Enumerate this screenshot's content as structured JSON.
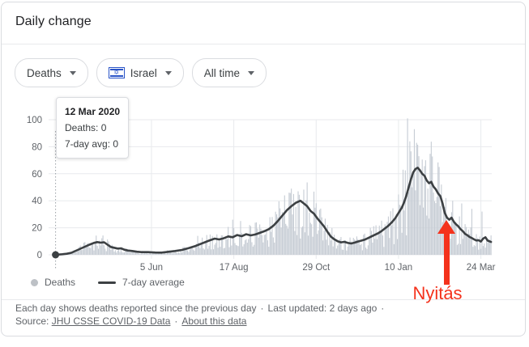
{
  "header": {
    "title": "Daily change"
  },
  "filters": {
    "metric": {
      "label": "Deaths"
    },
    "region": {
      "label": "Israel",
      "flag": "israel-flag",
      "star": "✡"
    },
    "range": {
      "label": "All time"
    }
  },
  "tooltip": {
    "date": "12 Mar 2020",
    "deaths": "Deaths: 0",
    "avg": "7-day avg: 0"
  },
  "legend": {
    "deaths": "Deaths",
    "avg": "7-day average"
  },
  "annotation": {
    "text": "Nyitás",
    "color": "#f4321c",
    "day": 346
  },
  "footer": {
    "desc": "Each day shows deaths reported since the previous day",
    "sep1": "·",
    "updated": "Last updated: 2 days ago",
    "sep2": "·",
    "source_label": "Source:",
    "source_link": "JHU CSSE COVID-19 Data",
    "sep3": "·",
    "about_link": "About this data"
  },
  "chart_data": {
    "type": "bar",
    "title": "Daily change — Deaths — Israel — All time",
    "xlabel": "",
    "ylabel": "",
    "start_date": "12 Mar 2020",
    "days_total": 387,
    "ylim": [
      0,
      100
    ],
    "grid": true,
    "legend_position": "bottom-left",
    "y_axis": {
      "ticks": [
        0,
        20,
        40,
        60,
        80,
        100
      ]
    },
    "x_axis": {
      "ticks": [
        {
          "label": "5 Jun",
          "day": 85
        },
        {
          "label": "17 Aug",
          "day": 158
        },
        {
          "label": "29 Oct",
          "day": 231
        },
        {
          "label": "10 Jan",
          "day": 304
        },
        {
          "label": "24 Mar",
          "day": 377
        }
      ]
    },
    "colors": {
      "bar": "#c6ccd4",
      "line": "#3c4043",
      "grid": "#e8eaed",
      "axis_text": "#5f6368",
      "cursor": "#9aa0a6"
    },
    "series": [
      {
        "name": "Deaths",
        "type": "bar",
        "color": "#c6ccd4",
        "note": "daily bars scatter around 7-day average; notable outlier days listed",
        "spikes": [
          [
            126,
            14
          ],
          [
            157,
            26
          ],
          [
            164,
            25
          ],
          [
            178,
            24
          ],
          [
            196,
            30
          ],
          [
            203,
            44
          ],
          [
            207,
            46
          ],
          [
            211,
            45
          ],
          [
            215,
            47
          ],
          [
            308,
            63
          ],
          [
            312,
            101
          ],
          [
            314,
            84
          ],
          [
            318,
            93
          ],
          [
            322,
            73
          ],
          [
            328,
            70
          ],
          [
            342,
            52
          ],
          [
            346,
            42
          ],
          [
            352,
            40
          ],
          [
            360,
            38
          ],
          [
            369,
            34
          ],
          [
            378,
            32
          ]
        ]
      },
      {
        "name": "7-day average",
        "type": "line",
        "color": "#3c4043",
        "points": [
          [
            0,
            0
          ],
          [
            6,
            0.4
          ],
          [
            10,
            0.8
          ],
          [
            14,
            1.5
          ],
          [
            18,
            3
          ],
          [
            22,
            4.5
          ],
          [
            26,
            6
          ],
          [
            30,
            7.5
          ],
          [
            34,
            8.8
          ],
          [
            37,
            9.4
          ],
          [
            40,
            9
          ],
          [
            43,
            9.3
          ],
          [
            46,
            7.5
          ],
          [
            49,
            5.8
          ],
          [
            52,
            5.2
          ],
          [
            55,
            4.6
          ],
          [
            58,
            4.8
          ],
          [
            61,
            3.8
          ],
          [
            64,
            3.2
          ],
          [
            68,
            2.8
          ],
          [
            72,
            2.3
          ],
          [
            76,
            2
          ],
          [
            82,
            2
          ],
          [
            88,
            1.7
          ],
          [
            94,
            1.6
          ],
          [
            100,
            2.2
          ],
          [
            106,
            2.8
          ],
          [
            112,
            3.6
          ],
          [
            118,
            5
          ],
          [
            124,
            6.5
          ],
          [
            130,
            8.5
          ],
          [
            136,
            10.5
          ],
          [
            141,
            12
          ],
          [
            145,
            11.4
          ],
          [
            149,
            12.2
          ],
          [
            153,
            13.6
          ],
          [
            157,
            13
          ],
          [
            161,
            14.6
          ],
          [
            165,
            13.8
          ],
          [
            169,
            15.2
          ],
          [
            173,
            14.4
          ],
          [
            177,
            15
          ],
          [
            181,
            16.2
          ],
          [
            185,
            17.4
          ],
          [
            189,
            19
          ],
          [
            193,
            21.5
          ],
          [
            197,
            25
          ],
          [
            201,
            29
          ],
          [
            205,
            33
          ],
          [
            209,
            36
          ],
          [
            213,
            38.5
          ],
          [
            217,
            40
          ],
          [
            220,
            38
          ],
          [
            223,
            36
          ],
          [
            226,
            32.5
          ],
          [
            229,
            30.5
          ],
          [
            232,
            27
          ],
          [
            235,
            24
          ],
          [
            238,
            21
          ],
          [
            241,
            17
          ],
          [
            244,
            13.5
          ],
          [
            247,
            11.5
          ],
          [
            250,
            10
          ],
          [
            253,
            9.2
          ],
          [
            256,
            9.6
          ],
          [
            259,
            8.8
          ],
          [
            262,
            8.4
          ],
          [
            265,
            9
          ],
          [
            268,
            9.8
          ],
          [
            271,
            10.5
          ],
          [
            274,
            11.2
          ],
          [
            277,
            12.4
          ],
          [
            280,
            13.6
          ],
          [
            283,
            14.8
          ],
          [
            286,
            16
          ],
          [
            289,
            17.6
          ],
          [
            292,
            19.5
          ],
          [
            295,
            21.5
          ],
          [
            298,
            24
          ],
          [
            301,
            27
          ],
          [
            304,
            31
          ],
          [
            307,
            35
          ],
          [
            309,
            39
          ],
          [
            311,
            44
          ],
          [
            313,
            50
          ],
          [
            315,
            56
          ],
          [
            317,
            61
          ],
          [
            319,
            63.5
          ],
          [
            321,
            64.5
          ],
          [
            323,
            62.5
          ],
          [
            325,
            60
          ],
          [
            327,
            58.5
          ],
          [
            329,
            55
          ],
          [
            331,
            53
          ],
          [
            333,
            54
          ],
          [
            335,
            50.5
          ],
          [
            337,
            48.5
          ],
          [
            339,
            45.5
          ],
          [
            341,
            43.5
          ],
          [
            343,
            38
          ],
          [
            345,
            31
          ],
          [
            347,
            27.5
          ],
          [
            349,
            26
          ],
          [
            351,
            27.5
          ],
          [
            353,
            24.5
          ],
          [
            355,
            22.5
          ],
          [
            357,
            21
          ],
          [
            359,
            19
          ],
          [
            361,
            17.5
          ],
          [
            363,
            15.5
          ],
          [
            365,
            14.5
          ],
          [
            367,
            13.2
          ],
          [
            369,
            12.4
          ],
          [
            371,
            11.4
          ],
          [
            373,
            10.6
          ],
          [
            375,
            10.8
          ],
          [
            377,
            9.8
          ],
          [
            379,
            12
          ],
          [
            381,
            13
          ],
          [
            383,
            10.5
          ],
          [
            386,
            9.5
          ]
        ]
      }
    ],
    "selected_point": {
      "date": "12 Mar 2020",
      "deaths": 0,
      "avg": 0,
      "day": 0
    }
  }
}
